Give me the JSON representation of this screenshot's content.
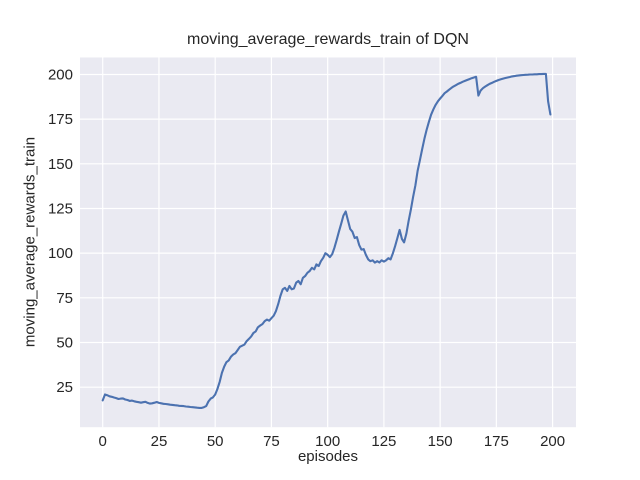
{
  "chart_data": {
    "type": "line",
    "title": "moving_average_rewards_train of DQN",
    "xlabel": "episodes",
    "ylabel": "moving_average_rewards_train",
    "legend": null,
    "grid": true,
    "x_start": 0,
    "x_step": 1,
    "xticks": [
      0,
      25,
      50,
      75,
      100,
      125,
      150,
      175,
      200
    ],
    "yticks": [
      25,
      50,
      75,
      100,
      125,
      150,
      175,
      200
    ],
    "xlim": [
      -10.1,
      210.4
    ],
    "ylim": [
      2.6,
      209.5
    ],
    "line_color": "#4C72B0",
    "plot_bg": "#EAEAF2",
    "grid_color": "#FFFFFF",
    "text_color": "#262626",
    "values": [
      17.6,
      20.9,
      20.5,
      19.9,
      19.6,
      19.2,
      18.9,
      18.4,
      18.6,
      18.7,
      18.1,
      17.8,
      17.3,
      17.5,
      17.1,
      16.8,
      16.6,
      16.3,
      16.6,
      16.8,
      16.2,
      15.8,
      16.0,
      16.3,
      16.7,
      16.2,
      16.0,
      15.7,
      15.6,
      15.4,
      15.2,
      15.1,
      14.9,
      14.8,
      14.6,
      14.5,
      14.4,
      14.2,
      14.1,
      13.9,
      13.8,
      13.7,
      13.5,
      13.4,
      13.4,
      13.8,
      14.4,
      17.0,
      18.6,
      19.3,
      20.9,
      24.0,
      28.0,
      33.0,
      36.5,
      39.0,
      40.0,
      42.0,
      43.3,
      44.0,
      45.8,
      47.6,
      48.2,
      48.8,
      50.8,
      52.0,
      53.4,
      55.3,
      56.2,
      58.5,
      59.5,
      60.3,
      62.0,
      62.8,
      62.2,
      63.6,
      65.0,
      67.5,
      71.5,
      76.0,
      79.7,
      80.6,
      78.9,
      81.6,
      79.8,
      80.2,
      83.5,
      84.4,
      82.6,
      86.2,
      87.2,
      89.0,
      90.0,
      91.8,
      90.9,
      93.7,
      92.8,
      95.5,
      97.4,
      100.0,
      99.0,
      97.8,
      99.5,
      103.0,
      107.5,
      112.0,
      116.5,
      121.0,
      123.3,
      118.5,
      113.5,
      112.0,
      108.5,
      109.0,
      104.5,
      102.0,
      102.3,
      99.0,
      96.5,
      95.5,
      96.0,
      94.7,
      95.5,
      94.8,
      96.0,
      95.3,
      96.0,
      97.2,
      96.5,
      100.0,
      103.9,
      108.5,
      113.0,
      108.0,
      106.0,
      111.0,
      118.0,
      124.5,
      131.5,
      138.0,
      146.0,
      152.0,
      158.0,
      164.0,
      169.0,
      173.5,
      177.5,
      180.5,
      183.0,
      185.0,
      186.5,
      188.0,
      189.5,
      190.5,
      191.5,
      192.5,
      193.3,
      194.0,
      194.7,
      195.3,
      195.9,
      196.4,
      196.9,
      197.4,
      197.9,
      198.3,
      198.7,
      188.2,
      191.0,
      192.3,
      193.2,
      194.0,
      194.7,
      195.3,
      195.9,
      196.4,
      196.9,
      197.3,
      197.7,
      198.0,
      198.3,
      198.6,
      198.9,
      199.1,
      199.3,
      199.5,
      199.6,
      199.7,
      199.8,
      199.9,
      200.0,
      200.0,
      200.1,
      200.1,
      200.2,
      200.2,
      200.3,
      200.3,
      185.0,
      177.6
    ]
  }
}
